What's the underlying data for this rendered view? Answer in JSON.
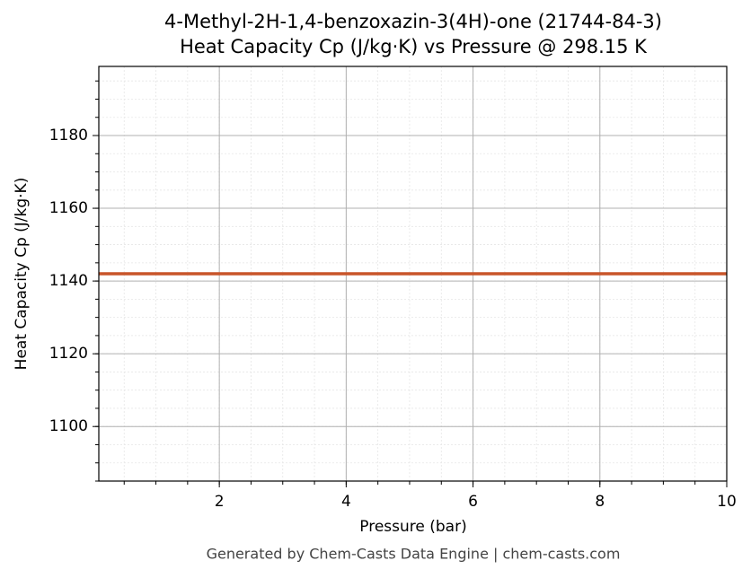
{
  "chart_data": {
    "type": "line",
    "title": "4-Methyl-2H-1,4-benzoxazin-3(4H)-one (21744-84-3)",
    "subtitle": "Heat Capacity Cp (J/kg·K) vs Pressure @ 298.15 K",
    "x_label": "Pressure (bar)",
    "y_label": "Heat Capacity Cp (J/kg·K)",
    "footer": "Generated by Chem-Casts Data Engine | chem-casts.com",
    "x": [
      0.1,
      10
    ],
    "series": [
      {
        "name": "Cp",
        "color": "#c8552a",
        "values": [
          1142,
          1142
        ]
      }
    ],
    "xlim": [
      0.1,
      10
    ],
    "xticks": [
      2,
      4,
      6,
      8,
      10
    ],
    "ylim": [
      1085,
      1199
    ],
    "yticks": [
      1100,
      1120,
      1140,
      1160,
      1180
    ],
    "grid": true,
    "minor_grid": true,
    "legend": false
  }
}
